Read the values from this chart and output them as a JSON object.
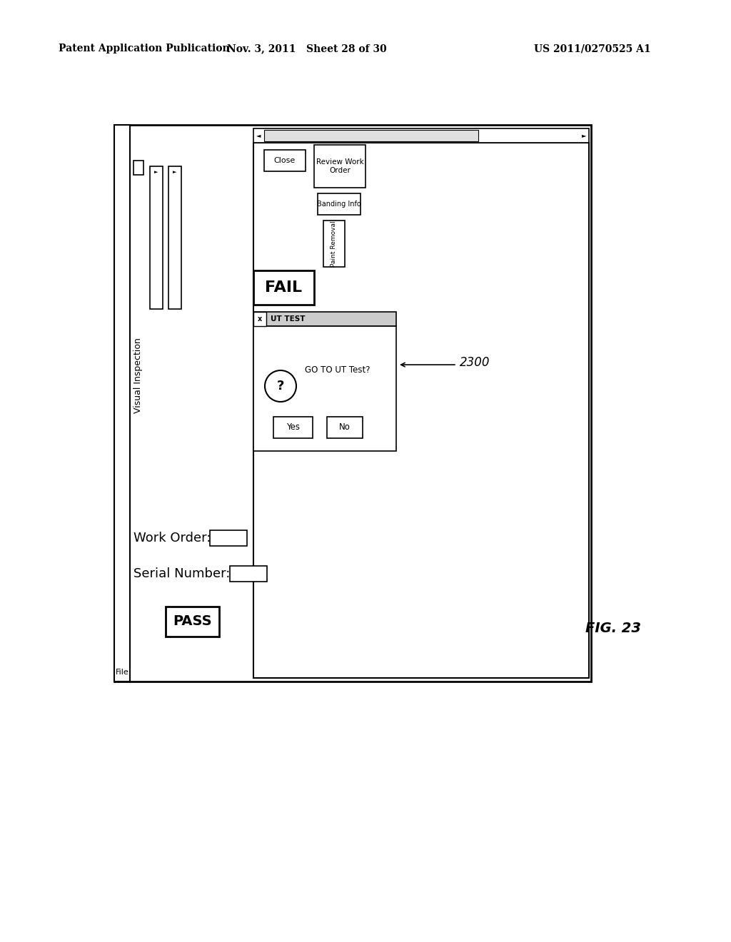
{
  "header_left": "Patent Application Publication",
  "header_mid": "Nov. 3, 2011   Sheet 28 of 30",
  "header_right": "US 2011/0270525 A1",
  "fig_label": "FIG. 23",
  "fig_number": "2300",
  "bg_color": "#ffffff",
  "line_color": "#000000"
}
